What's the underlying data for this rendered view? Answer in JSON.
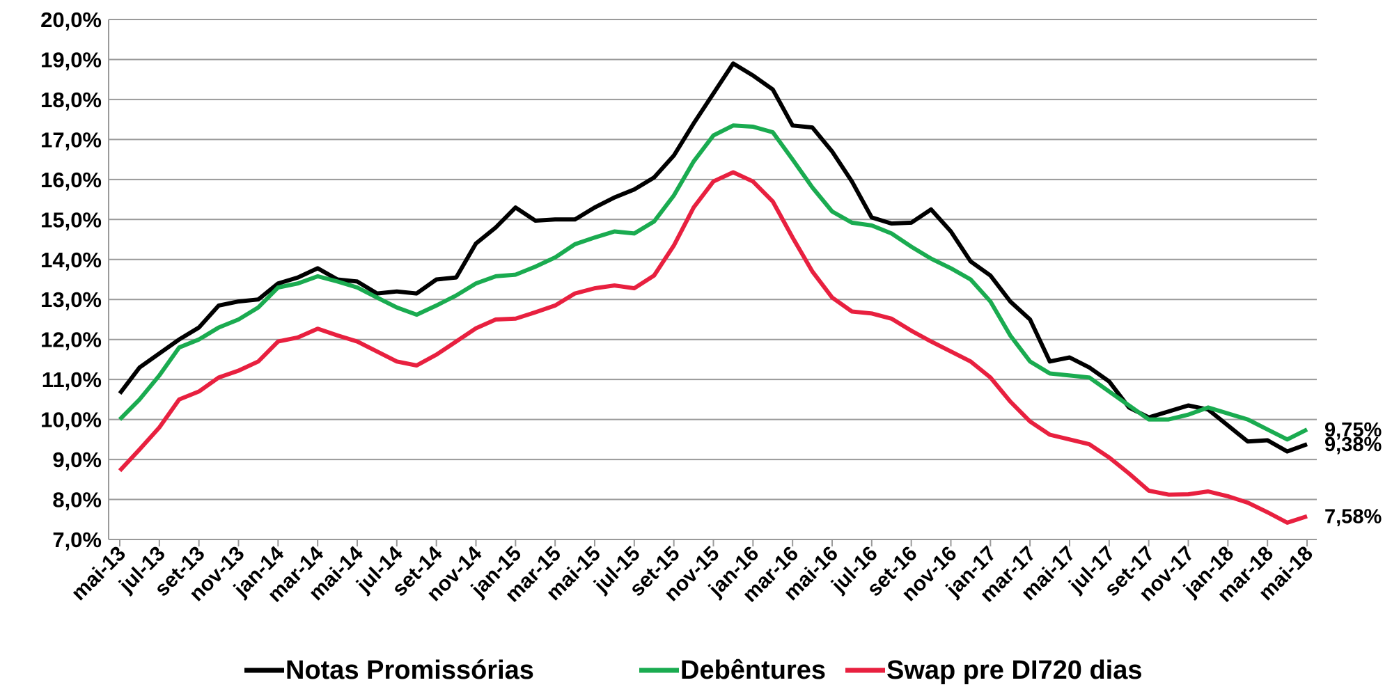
{
  "chart_data": {
    "type": "line",
    "categories": [
      "mai-13",
      null,
      "jul-13",
      null,
      "set-13",
      null,
      "nov-13",
      null,
      "jan-14",
      null,
      "mar-14",
      null,
      "mai-14",
      null,
      "jul-14",
      null,
      "set-14",
      null,
      "nov-14",
      null,
      "jan-15",
      null,
      "mar-15",
      null,
      "mai-15",
      null,
      "jul-15",
      null,
      "set-15",
      null,
      "nov-15",
      null,
      "jan-16",
      null,
      "mar-16",
      null,
      "mai-16",
      null,
      "jul-16",
      null,
      "set-16",
      null,
      "nov-16",
      null,
      "jan-17",
      null,
      "mar-17",
      null,
      "mai-17",
      null,
      "jul-17",
      null,
      "set-17",
      null,
      "nov-17",
      null,
      "jan-18",
      null,
      "mar-18",
      null,
      "mai-18"
    ],
    "series": [
      {
        "name": "Notas Promissórias",
        "color": "#000000",
        "end_label": "9,38%",
        "values": [
          10.65,
          11.3,
          11.65,
          12.0,
          12.3,
          12.85,
          12.95,
          13.0,
          13.4,
          13.55,
          13.78,
          13.5,
          13.45,
          13.15,
          13.2,
          13.15,
          13.5,
          13.55,
          14.4,
          14.8,
          15.3,
          14.97,
          15.0,
          15.0,
          15.3,
          15.55,
          15.75,
          16.05,
          16.6,
          17.4,
          18.15,
          18.9,
          18.6,
          18.25,
          17.35,
          17.3,
          16.7,
          15.95,
          15.05,
          14.9,
          14.92,
          15.25,
          14.7,
          13.95,
          13.6,
          12.95,
          12.5,
          11.45,
          11.55,
          11.3,
          10.95,
          10.3,
          10.05,
          10.2,
          10.35,
          10.25,
          9.85,
          9.45,
          9.48,
          9.2,
          9.38
        ]
      },
      {
        "name": "Debêntures",
        "color": "#1aab50",
        "end_label": "9,75%",
        "values": [
          10.0,
          10.5,
          11.1,
          11.8,
          12.0,
          12.3,
          12.5,
          12.8,
          13.3,
          13.4,
          13.58,
          13.45,
          13.3,
          13.05,
          12.8,
          12.62,
          12.85,
          13.1,
          13.4,
          13.58,
          13.62,
          13.82,
          14.05,
          14.38,
          14.55,
          14.7,
          14.65,
          14.95,
          15.6,
          16.45,
          17.1,
          17.35,
          17.32,
          17.18,
          16.5,
          15.8,
          15.2,
          14.92,
          14.85,
          14.65,
          14.32,
          14.02,
          13.78,
          13.5,
          12.95,
          12.1,
          11.45,
          11.15,
          11.1,
          11.05,
          10.7,
          10.35,
          10.0,
          10.0,
          10.12,
          10.3,
          10.15,
          10.0,
          9.75,
          9.5,
          9.75
        ]
      },
      {
        "name": "Swap pre DI720 dias",
        "color": "#e8203f",
        "end_label": "7,58%",
        "values": [
          8.72,
          9.25,
          9.8,
          10.5,
          10.7,
          11.05,
          11.22,
          11.45,
          11.95,
          12.05,
          12.27,
          12.1,
          11.95,
          11.7,
          11.45,
          11.35,
          11.62,
          11.95,
          12.28,
          12.5,
          12.52,
          12.68,
          12.85,
          13.15,
          13.28,
          13.35,
          13.28,
          13.6,
          14.35,
          15.3,
          15.95,
          16.18,
          15.95,
          15.45,
          14.55,
          13.7,
          13.05,
          12.7,
          12.65,
          12.52,
          12.22,
          11.95,
          11.7,
          11.45,
          11.05,
          10.45,
          9.95,
          9.62,
          9.5,
          9.38,
          9.05,
          8.65,
          8.22,
          8.12,
          8.13,
          8.2,
          8.08,
          7.92,
          7.68,
          7.42,
          7.58
        ]
      }
    ],
    "ylim": [
      7,
      20
    ],
    "yticks": [
      {
        "value": 7,
        "label": "7,0%"
      },
      {
        "value": 8,
        "label": "8,0%"
      },
      {
        "value": 9,
        "label": "9,0%"
      },
      {
        "value": 10,
        "label": "10,0%"
      },
      {
        "value": 11,
        "label": "11,0%"
      },
      {
        "value": 12,
        "label": "12,0%"
      },
      {
        "value": 13,
        "label": "13,0%"
      },
      {
        "value": 14,
        "label": "14,0%"
      },
      {
        "value": 15,
        "label": "15,0%"
      },
      {
        "value": 16,
        "label": "16,0%"
      },
      {
        "value": 17,
        "label": "17,0%"
      },
      {
        "value": 18,
        "label": "18,0%"
      },
      {
        "value": 19,
        "label": "19,0%"
      },
      {
        "value": 20,
        "label": "20,0%"
      }
    ],
    "grid": true,
    "legend": "bottom"
  }
}
